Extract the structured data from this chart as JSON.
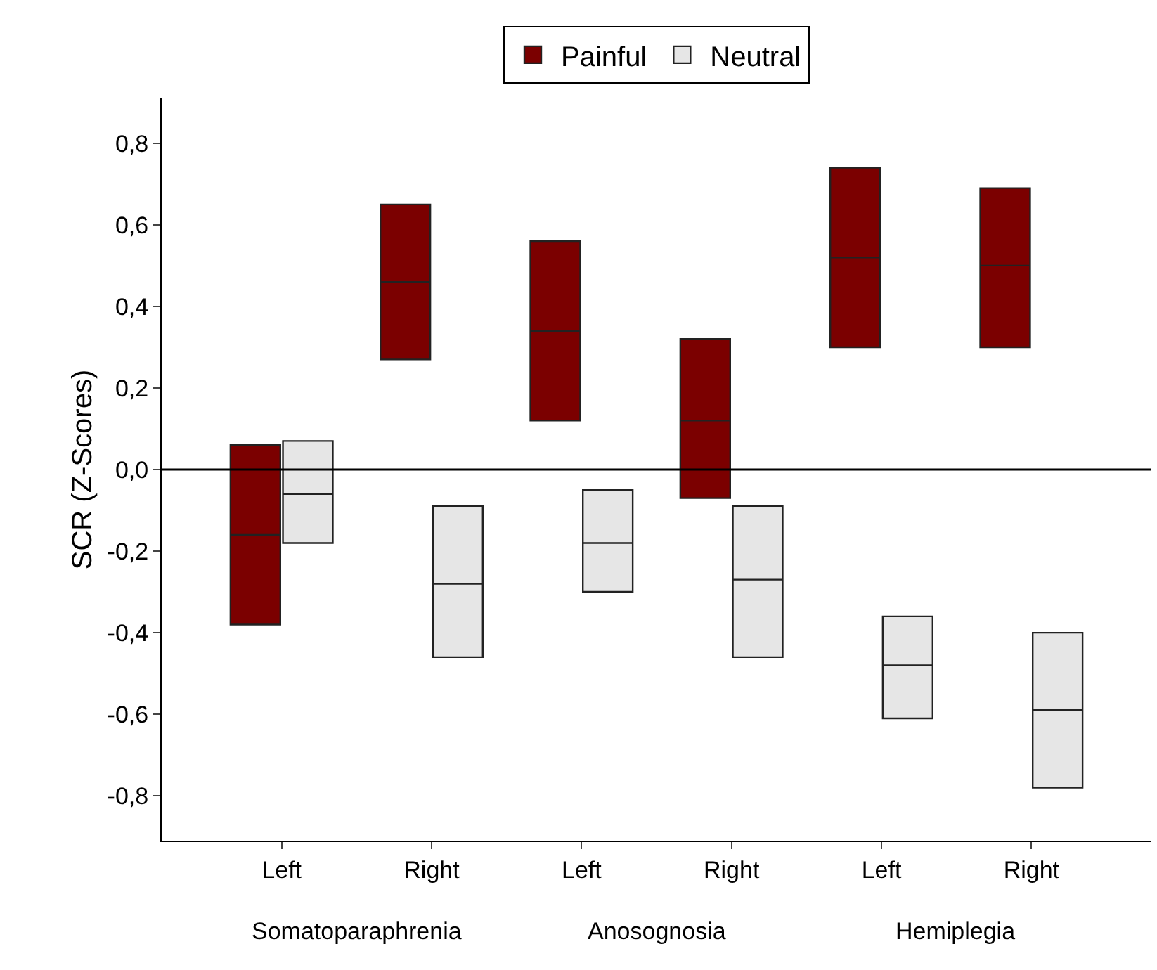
{
  "chart_data": {
    "type": "box",
    "ylabel": "SCR (Z-Scores)",
    "categories": [
      "Left",
      "Right",
      "Left",
      "Right",
      "Left",
      "Right"
    ],
    "annotations": [
      "Somatoparaphrenia",
      "Anosognosia",
      "Hemiplegia"
    ],
    "series": [
      {
        "name": "Painful",
        "color": "#7b0000",
        "boxes": [
          {
            "low": -0.38,
            "q1": -0.38,
            "median": -0.16,
            "q3": 0.06,
            "high": 0.06
          },
          {
            "low": 0.27,
            "q1": 0.27,
            "median": 0.46,
            "q3": 0.65,
            "high": 0.65
          },
          {
            "low": 0.12,
            "q1": 0.12,
            "median": 0.34,
            "q3": 0.56,
            "high": 0.56
          },
          {
            "low": -0.07,
            "q1": -0.07,
            "median": 0.12,
            "q3": 0.32,
            "high": 0.32
          },
          {
            "low": 0.3,
            "q1": 0.3,
            "median": 0.52,
            "q3": 0.74,
            "high": 0.74
          },
          {
            "low": 0.3,
            "q1": 0.3,
            "median": 0.5,
            "q3": 0.69,
            "high": 0.69
          }
        ]
      },
      {
        "name": "Neutral",
        "color": "#e6e6e6",
        "boxes": [
          {
            "low": -0.18,
            "q1": -0.18,
            "median": -0.06,
            "q3": 0.07,
            "high": 0.07
          },
          {
            "low": -0.46,
            "q1": -0.46,
            "median": -0.28,
            "q3": -0.09,
            "high": -0.09
          },
          {
            "low": -0.3,
            "q1": -0.3,
            "median": -0.18,
            "q3": -0.05,
            "high": -0.05
          },
          {
            "low": -0.46,
            "q1": -0.46,
            "median": -0.27,
            "q3": -0.09,
            "high": -0.09
          },
          {
            "low": -0.61,
            "q1": -0.61,
            "median": -0.48,
            "q3": -0.36,
            "high": -0.36
          },
          {
            "low": -0.78,
            "q1": -0.78,
            "median": -0.59,
            "q3": -0.4,
            "high": -0.4
          }
        ]
      }
    ],
    "ylim": [
      -0.91,
      0.91
    ],
    "yticks": [
      {
        "value": -0.8,
        "label": "-0,8"
      },
      {
        "value": -0.6,
        "label": "-0,6"
      },
      {
        "value": -0.4,
        "label": "-0,4"
      },
      {
        "value": -0.2,
        "label": "-0,2"
      },
      {
        "value": 0,
        "label": "0,0"
      },
      {
        "value": 0.2,
        "label": "0,2"
      },
      {
        "value": 0.4,
        "label": "0,4"
      },
      {
        "value": 0.6,
        "label": "0,6"
      },
      {
        "value": 0.8,
        "label": "0,8"
      }
    ],
    "ref_lines": [
      {
        "axis": "y",
        "value": 0,
        "color": "#000000"
      }
    ],
    "grid": false,
    "legend": "top"
  }
}
